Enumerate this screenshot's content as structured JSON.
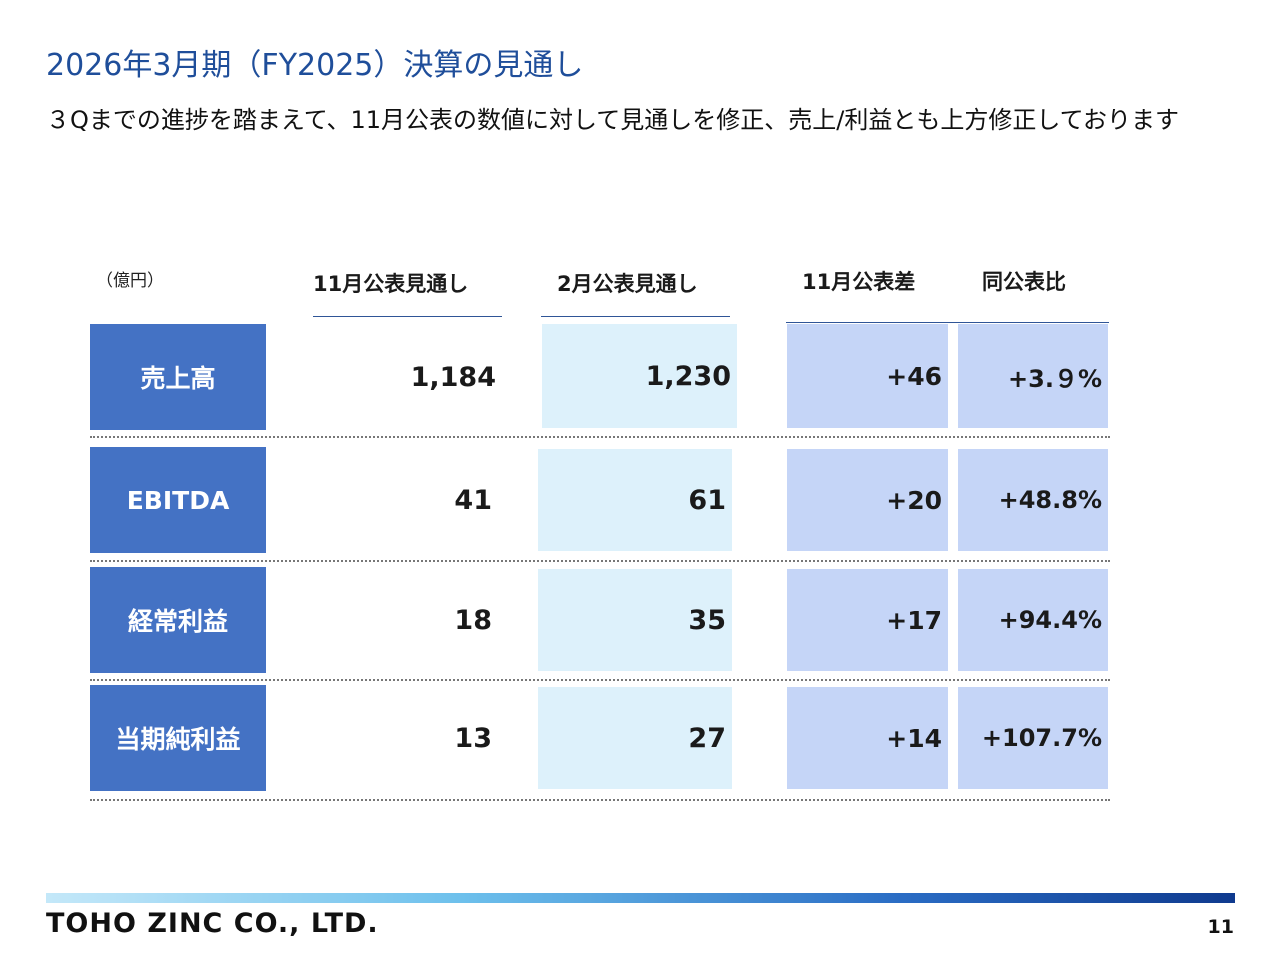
{
  "title": "2026年3月期（FY2025）決算の見通し",
  "subtitle": "３Qまでの進捗を踏まえて、11月公表の数値に対して見通しを修正、売上/利益とも上方修正しております",
  "table": {
    "unit": "（億円）",
    "headers": [
      "11月公表見通し",
      "2月公表見通し",
      "11月公表差",
      "同公表比"
    ],
    "rows": [
      {
        "label": "売上高",
        "nov": "1,184",
        "feb": "1,230",
        "diff": "+46",
        "ratio": "+3.９%"
      },
      {
        "label": "EBITDA",
        "nov": "41",
        "feb": "61",
        "diff": "+20",
        "ratio": "+48.8%"
      },
      {
        "label": "経常利益",
        "nov": "18",
        "feb": "35",
        "diff": "+17",
        "ratio": "+94.4%"
      },
      {
        "label": "当期純利益",
        "nov": "13",
        "feb": "27",
        "diff": "+14",
        "ratio": "+107.7%"
      }
    ]
  },
  "footer": {
    "company": "TOHO ZINC CO., LTD.",
    "page": "11"
  }
}
